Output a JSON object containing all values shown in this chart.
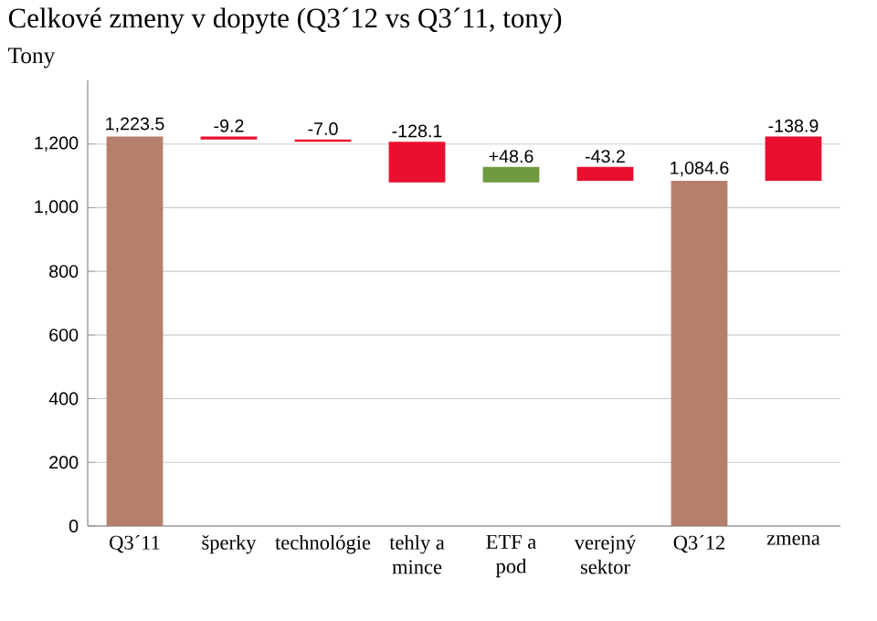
{
  "chart_data": {
    "type": "bar",
    "title": "Celkové zmeny v dopyte (Q3´12 vs Q3´11, tony)",
    "ylabel": "Tony",
    "categories": [
      "Q3´11",
      "šperky",
      "technológie",
      "tehly a mince",
      "ETF a pod",
      "verejný sektor",
      "Q3´12",
      "zmena"
    ],
    "values": [
      1223.5,
      -9.2,
      -7.0,
      -128.1,
      48.6,
      -43.2,
      1084.6,
      -138.9
    ],
    "base": [
      0,
      1223.5,
      1214.3,
      1207.3,
      1079.2,
      1127.8,
      0,
      1223.5
    ],
    "colors": [
      "#b5806b",
      "#e8102e",
      "#e8102e",
      "#e8102e",
      "#6f9a3f",
      "#e8102e",
      "#b5806b",
      "#e8102e"
    ],
    "value_labels": [
      "1,223.5",
      "-9.2",
      "-7.0",
      "-128.1",
      "+48.6",
      "-43.2",
      "1,084.6",
      "-138.9"
    ],
    "ylim": [
      0,
      1400
    ],
    "yticks": [
      {
        "value": 0,
        "label": "0"
      },
      {
        "value": 200,
        "label": "200"
      },
      {
        "value": 400,
        "label": "400"
      },
      {
        "value": 600,
        "label": "600"
      },
      {
        "value": 800,
        "label": "800"
      },
      {
        "value": 1000,
        "label": "1,000"
      },
      {
        "value": 1200,
        "label": "1,200"
      }
    ],
    "grid": "y"
  }
}
